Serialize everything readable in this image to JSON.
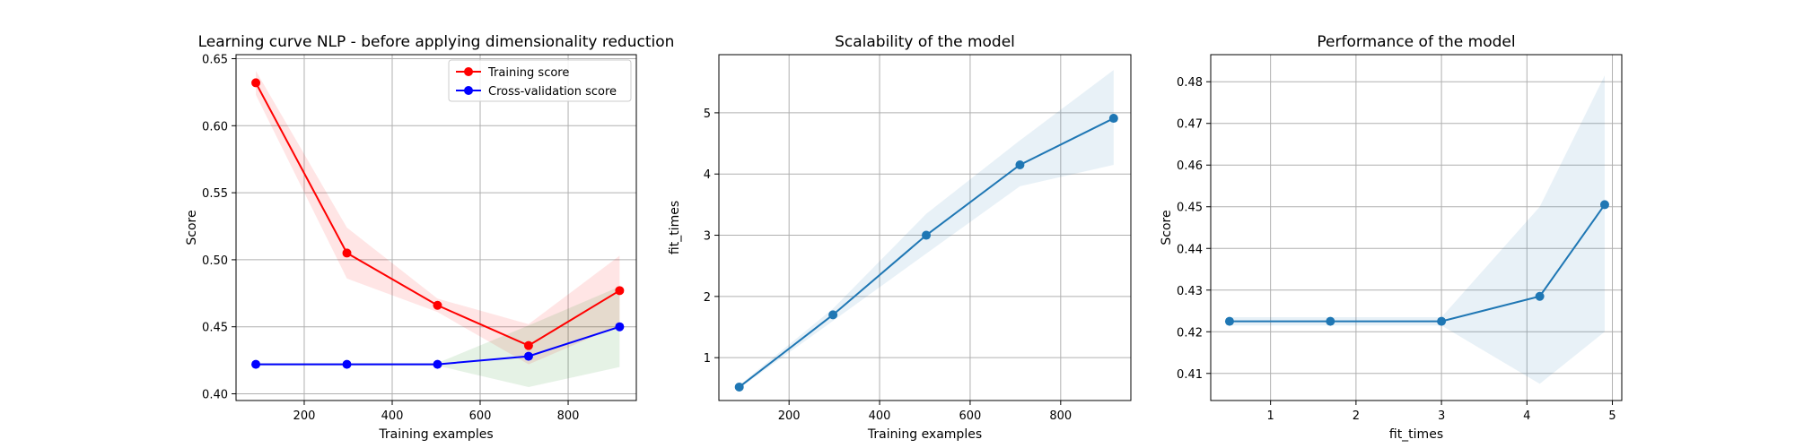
{
  "chart_data": [
    {
      "type": "line",
      "title": "Learning curve NLP - before applying dimensionality reduction",
      "xlabel": "Training examples",
      "ylabel": "Score",
      "xlim": [
        45,
        955
      ],
      "ylim": [
        0.395,
        0.653
      ],
      "xticks": [
        200,
        400,
        600,
        800
      ],
      "xtick_labels": [
        "200",
        "400",
        "600",
        "800"
      ],
      "yticks": [
        0.4,
        0.45,
        0.5,
        0.55,
        0.6,
        0.65
      ],
      "ytick_labels": [
        "0.40",
        "0.45",
        "0.50",
        "0.55",
        "0.60",
        "0.65"
      ],
      "grid": true,
      "legend": "top-right",
      "x": [
        90,
        297,
        503,
        710,
        917
      ],
      "series": [
        {
          "name": "Training score",
          "color": "#ff0000",
          "band_color": "#ff0000",
          "values": [
            0.632,
            0.505,
            0.466,
            0.436,
            0.477
          ],
          "band_lower": [
            0.623,
            0.486,
            0.461,
            0.422,
            0.451
          ],
          "band_upper": [
            0.641,
            0.524,
            0.471,
            0.452,
            0.503
          ]
        },
        {
          "name": "Cross-validation score",
          "color": "#0000ff",
          "band_color": "#008000",
          "values": [
            0.422,
            0.422,
            0.422,
            0.428,
            0.45
          ],
          "band_lower": [
            0.421,
            0.421,
            0.421,
            0.405,
            0.42
          ],
          "band_upper": [
            0.423,
            0.423,
            0.423,
            0.451,
            0.48
          ]
        }
      ]
    },
    {
      "type": "line",
      "title": "Scalability of the model",
      "xlabel": "Training examples",
      "ylabel": "fit_times",
      "xlim": [
        45,
        955
      ],
      "ylim": [
        0.3,
        5.95
      ],
      "xticks": [
        200,
        400,
        600,
        800
      ],
      "xtick_labels": [
        "200",
        "400",
        "600",
        "800"
      ],
      "yticks": [
        1,
        2,
        3,
        4,
        5
      ],
      "ytick_labels": [
        "1",
        "2",
        "3",
        "4",
        "5"
      ],
      "grid": true,
      "x": [
        90,
        297,
        503,
        710,
        917
      ],
      "series": [
        {
          "color": "#1f77b4",
          "band_color": "#1f77b4",
          "values": [
            0.52,
            1.7,
            3.0,
            4.15,
            4.91
          ],
          "band_lower": [
            0.5,
            1.6,
            2.7,
            3.8,
            4.15
          ],
          "band_upper": [
            0.55,
            1.8,
            3.35,
            4.55,
            5.7
          ]
        }
      ]
    },
    {
      "type": "line",
      "title": "Performance of the model",
      "xlabel": "fit_times",
      "ylabel": "Score",
      "xlim": [
        0.3,
        5.11
      ],
      "ylim": [
        0.4035,
        0.4865
      ],
      "xticks": [
        1,
        2,
        3,
        4,
        5
      ],
      "xtick_labels": [
        "1",
        "2",
        "3",
        "4",
        "5"
      ],
      "yticks": [
        0.41,
        0.42,
        0.43,
        0.44,
        0.45,
        0.46,
        0.47,
        0.48
      ],
      "ytick_labels": [
        "0.41",
        "0.42",
        "0.43",
        "0.44",
        "0.45",
        "0.46",
        "0.47",
        "0.48"
      ],
      "grid": true,
      "x": [
        0.52,
        1.7,
        3.0,
        4.15,
        4.91
      ],
      "series": [
        {
          "color": "#1f77b4",
          "band_color": "#1f77b4",
          "values": [
            0.4225,
            0.4225,
            0.4225,
            0.4285,
            0.4505
          ],
          "band_lower": [
            0.4215,
            0.4215,
            0.4215,
            0.4075,
            0.42
          ],
          "band_upper": [
            0.4235,
            0.4235,
            0.4235,
            0.45,
            0.4815
          ]
        }
      ]
    }
  ]
}
